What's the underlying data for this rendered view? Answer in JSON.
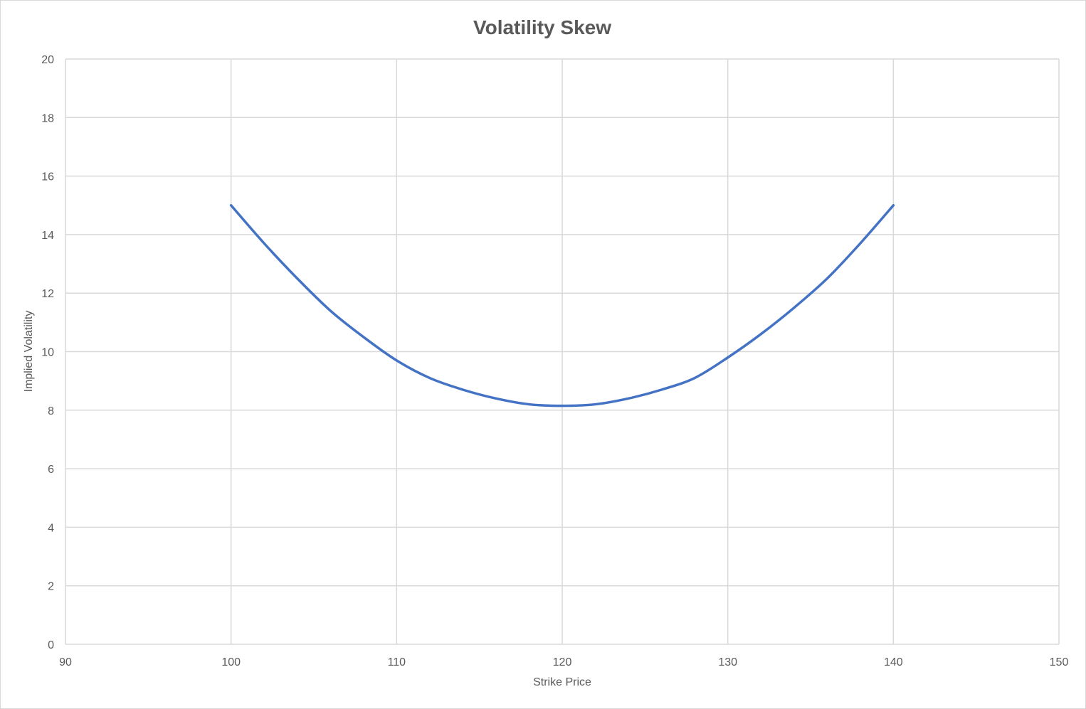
{
  "chart_data": {
    "type": "line",
    "title": "Volatility Skew",
    "xlabel": "Strike Price",
    "ylabel": "Implied Volatility",
    "xlim": [
      90,
      150
    ],
    "ylim": [
      0,
      20
    ],
    "x_ticks": [
      90,
      100,
      110,
      120,
      130,
      140,
      150
    ],
    "y_ticks": [
      0,
      2,
      4,
      6,
      8,
      10,
      12,
      14,
      16,
      18,
      20
    ],
    "grid": true,
    "legend": "none",
    "series": [
      {
        "color": "#4472c4",
        "x": [
          100,
          102,
          104,
          106,
          108,
          110,
          112,
          114,
          116,
          118,
          120,
          122,
          124,
          126,
          128,
          130,
          132,
          134,
          136,
          138,
          140
        ],
        "y": [
          15.0,
          13.7,
          12.5,
          11.4,
          10.5,
          9.7,
          9.1,
          8.7,
          8.4,
          8.2,
          8.15,
          8.2,
          8.4,
          8.7,
          9.1,
          9.8,
          10.6,
          11.5,
          12.5,
          13.7,
          15.0
        ]
      }
    ]
  }
}
